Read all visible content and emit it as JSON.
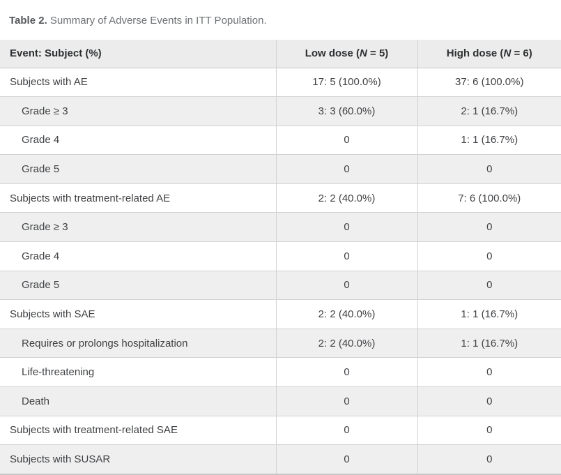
{
  "caption": {
    "label": "Table 2.",
    "text": " Summary of Adverse Events in ITT Population."
  },
  "table": {
    "columns": {
      "event": {
        "label": "Event: Subject (%)"
      },
      "low": {
        "prefix": "Low dose (",
        "n_symbol": "N",
        "suffix": " = 5)"
      },
      "high": {
        "prefix": "High dose (",
        "n_symbol": "N",
        "suffix": " = 6)"
      }
    },
    "rows": [
      {
        "label": "Subjects with AE",
        "indent": false,
        "low": "17: 5 (100.0%)",
        "high": "37: 6 (100.0%)"
      },
      {
        "label": "Grade ≥ 3",
        "indent": true,
        "low": "3: 3 (60.0%)",
        "high": "2: 1 (16.7%)"
      },
      {
        "label": "Grade 4",
        "indent": true,
        "low": "0",
        "high": "1: 1 (16.7%)"
      },
      {
        "label": "Grade 5",
        "indent": true,
        "low": "0",
        "high": "0"
      },
      {
        "label": "Subjects with treatment-related AE",
        "indent": false,
        "low": "2: 2 (40.0%)",
        "high": "7: 6 (100.0%)"
      },
      {
        "label": "Grade ≥ 3",
        "indent": true,
        "low": "0",
        "high": "0"
      },
      {
        "label": "Grade 4",
        "indent": true,
        "low": "0",
        "high": "0"
      },
      {
        "label": "Grade 5",
        "indent": true,
        "low": "0",
        "high": "0"
      },
      {
        "label": "Subjects with SAE",
        "indent": false,
        "low": "2: 2 (40.0%)",
        "high": "1: 1 (16.7%)"
      },
      {
        "label": "Requires or prolongs hospitalization",
        "indent": true,
        "low": "2: 2 (40.0%)",
        "high": "1: 1 (16.7%)"
      },
      {
        "label": "Life-threatening",
        "indent": true,
        "low": "0",
        "high": "0"
      },
      {
        "label": "Death",
        "indent": true,
        "low": "0",
        "high": "0"
      },
      {
        "label": "Subjects with treatment-related SAE",
        "indent": false,
        "low": "0",
        "high": "0"
      },
      {
        "label": "Subjects with SUSAR",
        "indent": false,
        "low": "0",
        "high": "0"
      }
    ]
  },
  "colors": {
    "header_bg": "#ececec",
    "stripe": "#efefef",
    "border": "#d2d2d2",
    "bottom_border": "#c6c6c6",
    "text": "#404245",
    "caption_bold": "#54575a",
    "caption_text": "#6e7174"
  }
}
